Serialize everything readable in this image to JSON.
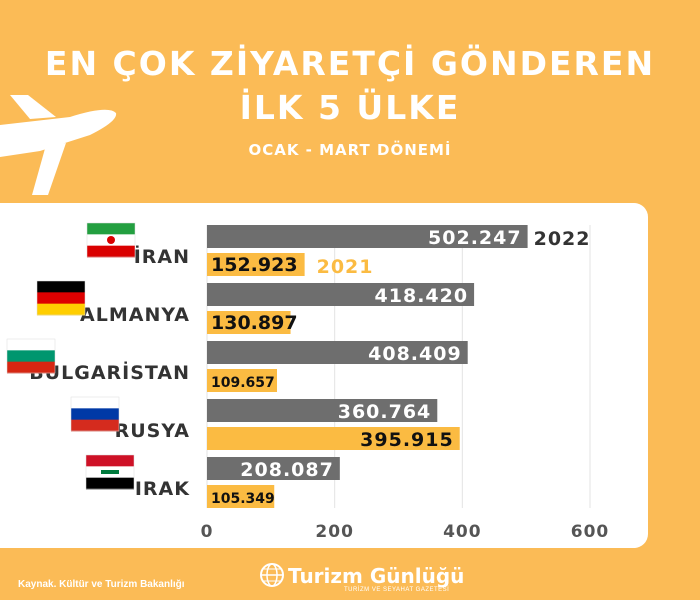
{
  "header": {
    "title_line1": "EN ÇOK ZİYARETÇİ GÖNDEREN",
    "title_line2": "İLK 5 ÜLKE",
    "subtitle": "OCAK - MART DÖNEMİ"
  },
  "footer": {
    "source": "Kaynak. Kültür ve Turizm Bakanlığı",
    "brand": "Turizm Günlüğü",
    "brand_tagline": "TURİZM VE SEYAHAT GAZETESİ"
  },
  "colors": {
    "background": "#fbbb56",
    "series_2022": "#6e6e6e",
    "series_2021": "#fbbb42",
    "text_dark": "#333333"
  },
  "chart_data": {
    "type": "bar",
    "orientation": "horizontal",
    "categories": [
      "İRAN",
      "ALMANYA",
      "BULGARİSTAN",
      "RUSYA",
      "IRAK"
    ],
    "flags": [
      "iran-flag",
      "germany-flag",
      "bulgaria-flag",
      "russia-flag",
      "iraq-flag"
    ],
    "series": [
      {
        "name": "2022",
        "values": [
          502247,
          418420,
          408409,
          360764,
          208087
        ],
        "labels": [
          "502.247",
          "418.420",
          "408.409",
          "360.764",
          "208.087"
        ]
      },
      {
        "name": "2021",
        "values": [
          152923,
          130897,
          109657,
          395915,
          105349
        ],
        "labels": [
          "152.923",
          "130.897",
          "109.657",
          "395.915",
          "105.349"
        ]
      }
    ],
    "xlim": [
      0,
      600
    ],
    "x_ticks": [
      0,
      200,
      400,
      600
    ],
    "x_tick_labels": [
      "0",
      "200",
      "400",
      "600"
    ],
    "value_scale": 1000,
    "grid": true
  }
}
